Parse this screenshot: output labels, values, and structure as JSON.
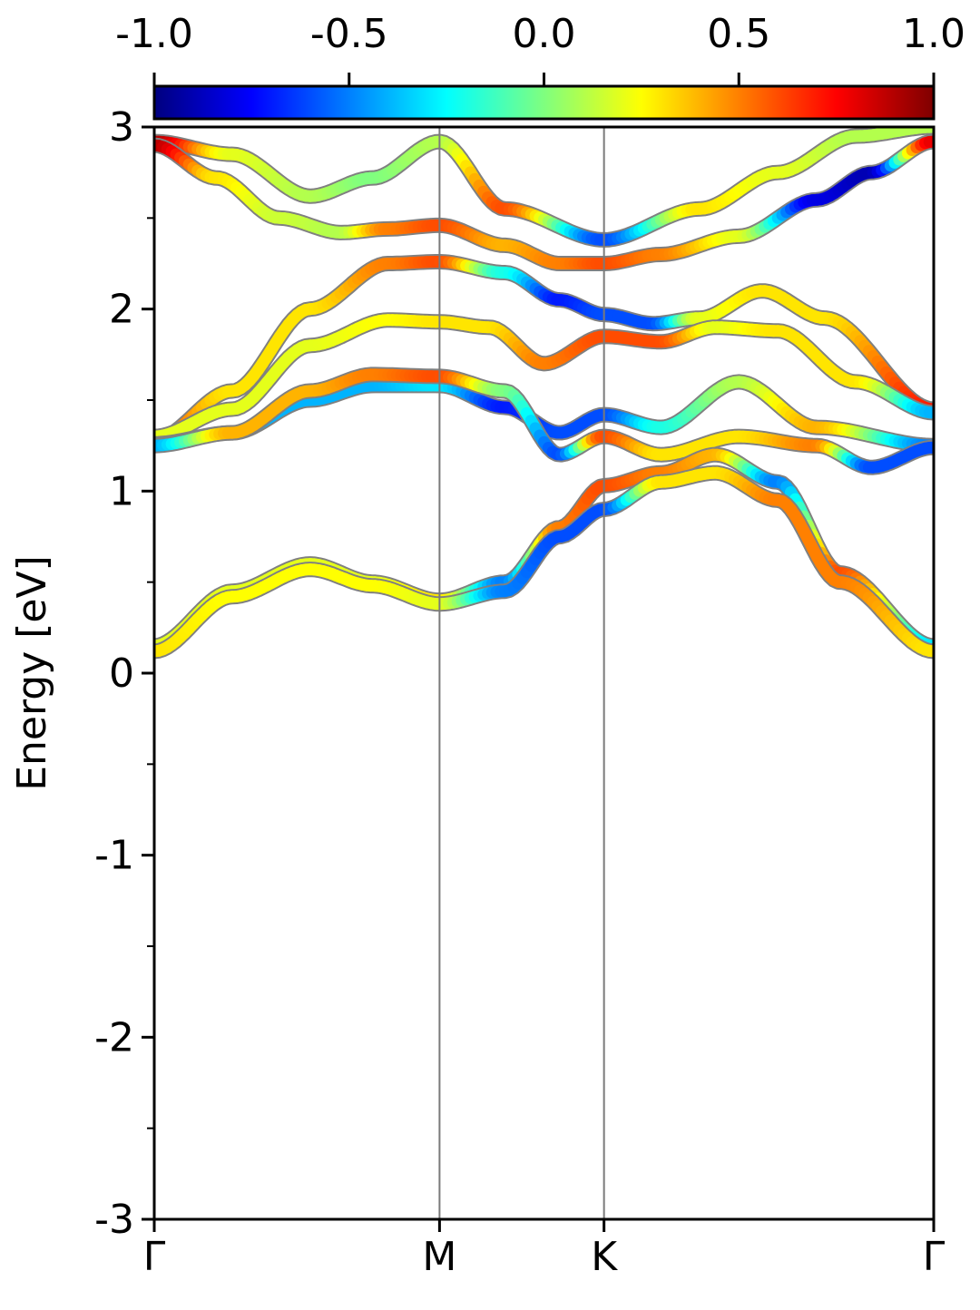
{
  "chart_data": {
    "type": "line",
    "title": "",
    "ylabel": "Energy [eV]",
    "xlabel": "",
    "ylim": [
      -3,
      3
    ],
    "y_ticks": [
      "-3",
      "-2",
      "-1",
      "0",
      "1",
      "2",
      "3"
    ],
    "y_tick_values": [
      -3,
      -2,
      -1,
      0,
      1,
      2,
      3
    ],
    "y_minor_tick_values": [
      -2.5,
      -1.5,
      -0.5,
      0.5,
      1.5,
      2.5
    ],
    "x_range": [
      0,
      1
    ],
    "k_points": [
      {
        "label": "Γ",
        "x": 0
      },
      {
        "label": "M",
        "x": 0.366
      },
      {
        "label": "K",
        "x": 0.577
      },
      {
        "label": "Γ",
        "x": 1
      }
    ],
    "colorbar": {
      "colormap": "jet",
      "min": -1.0,
      "max": 1.0,
      "ticks": [
        "-1.0",
        "-0.5",
        "0.0",
        "0.5",
        "1.0"
      ],
      "tick_values": [
        -1.0,
        -0.5,
        0.0,
        0.5,
        1.0
      ]
    },
    "grid": false,
    "bands": [
      {
        "k": [
          0,
          0.1,
          0.2,
          0.28,
          0.366,
          0.45,
          0.577,
          0.7,
          0.8,
          0.9,
          1
        ],
        "e": [
          2.92,
          2.85,
          2.62,
          2.72,
          2.92,
          2.55,
          2.38,
          2.55,
          2.75,
          2.95,
          3.0
        ],
        "c": [
          0.9,
          0.2,
          0.1,
          0.0,
          0.1,
          0.6,
          -0.6,
          0.3,
          0.2,
          0.1,
          0.1
        ]
      },
      {
        "k": [
          0,
          0.08,
          0.16,
          0.24,
          0.3,
          0.366,
          0.45,
          0.52,
          0.577,
          0.65,
          0.75,
          0.85,
          0.92,
          1
        ],
        "e": [
          2.9,
          2.72,
          2.5,
          2.42,
          2.44,
          2.46,
          2.35,
          2.25,
          2.25,
          2.3,
          2.4,
          2.6,
          2.75,
          2.92
        ],
        "c": [
          0.9,
          0.3,
          0.15,
          0.1,
          0.5,
          0.6,
          0.4,
          0.5,
          0.6,
          0.5,
          0.2,
          -0.8,
          -0.9,
          0.8
        ]
      },
      {
        "k": [
          0,
          0.1,
          0.2,
          0.3,
          0.366,
          0.45,
          0.52,
          0.577,
          0.64,
          0.7,
          0.78,
          0.86,
          1
        ],
        "e": [
          1.28,
          1.55,
          2.0,
          2.25,
          2.26,
          2.2,
          2.05,
          1.97,
          1.92,
          1.95,
          2.1,
          1.95,
          1.45
        ],
        "c": [
          0.6,
          0.3,
          0.3,
          0.5,
          0.6,
          -0.2,
          -0.7,
          -0.6,
          -0.6,
          0.2,
          0.3,
          0.3,
          0.7
        ]
      },
      {
        "k": [
          0,
          0.1,
          0.2,
          0.3,
          0.366,
          0.43,
          0.5,
          0.577,
          0.65,
          0.72,
          0.8,
          0.9,
          1
        ],
        "e": [
          1.3,
          1.45,
          1.8,
          1.94,
          1.93,
          1.9,
          1.7,
          1.85,
          1.82,
          1.9,
          1.88,
          1.6,
          1.43
        ],
        "c": [
          0.2,
          0.2,
          0.2,
          0.25,
          0.3,
          0.3,
          0.5,
          0.6,
          0.6,
          0.2,
          0.3,
          0.3,
          -0.4
        ]
      },
      {
        "k": [
          0,
          0.1,
          0.2,
          0.28,
          0.366,
          0.45,
          0.52,
          0.577,
          0.65,
          0.75,
          0.85,
          1
        ],
        "e": [
          1.26,
          1.32,
          1.5,
          1.58,
          1.58,
          1.46,
          1.32,
          1.42,
          1.35,
          1.6,
          1.35,
          1.25
        ],
        "c": [
          -0.4,
          -0.4,
          -0.4,
          -0.4,
          -0.3,
          -0.7,
          -0.6,
          -0.6,
          -0.2,
          0.1,
          0.4,
          -0.5
        ]
      },
      {
        "k": [
          0,
          0.1,
          0.2,
          0.28,
          0.366,
          0.45,
          0.52,
          0.577,
          0.65,
          0.75,
          0.85,
          0.92,
          1
        ],
        "e": [
          1.25,
          1.32,
          1.55,
          1.64,
          1.63,
          1.55,
          1.2,
          1.3,
          1.2,
          1.3,
          1.25,
          1.13,
          1.24
        ],
        "c": [
          -0.4,
          0.4,
          0.4,
          0.5,
          0.6,
          0.0,
          -0.6,
          0.6,
          0.3,
          0.3,
          0.5,
          -0.6,
          -0.6
        ]
      },
      {
        "k": [
          0,
          0.1,
          0.2,
          0.28,
          0.366,
          0.45,
          0.52,
          0.577,
          0.65,
          0.72,
          0.8,
          0.88,
          1
        ],
        "e": [
          0.15,
          0.45,
          0.6,
          0.5,
          0.4,
          0.5,
          0.8,
          1.03,
          1.1,
          1.2,
          1.05,
          0.55,
          0.15
        ],
        "c": [
          0.2,
          0.2,
          0.2,
          0.2,
          0.3,
          -0.5,
          0.5,
          0.6,
          0.5,
          0.4,
          -0.5,
          0.6,
          -0.3
        ]
      },
      {
        "k": [
          0,
          0.1,
          0.2,
          0.28,
          0.366,
          0.45,
          0.52,
          0.577,
          0.65,
          0.72,
          0.8,
          0.88,
          1
        ],
        "e": [
          0.12,
          0.42,
          0.57,
          0.48,
          0.38,
          0.45,
          0.75,
          0.9,
          1.05,
          1.1,
          0.95,
          0.5,
          0.12
        ],
        "c": [
          0.3,
          0.25,
          0.25,
          0.25,
          0.2,
          -0.5,
          -0.6,
          -0.6,
          0.3,
          0.3,
          0.5,
          0.5,
          0.3
        ]
      }
    ]
  }
}
